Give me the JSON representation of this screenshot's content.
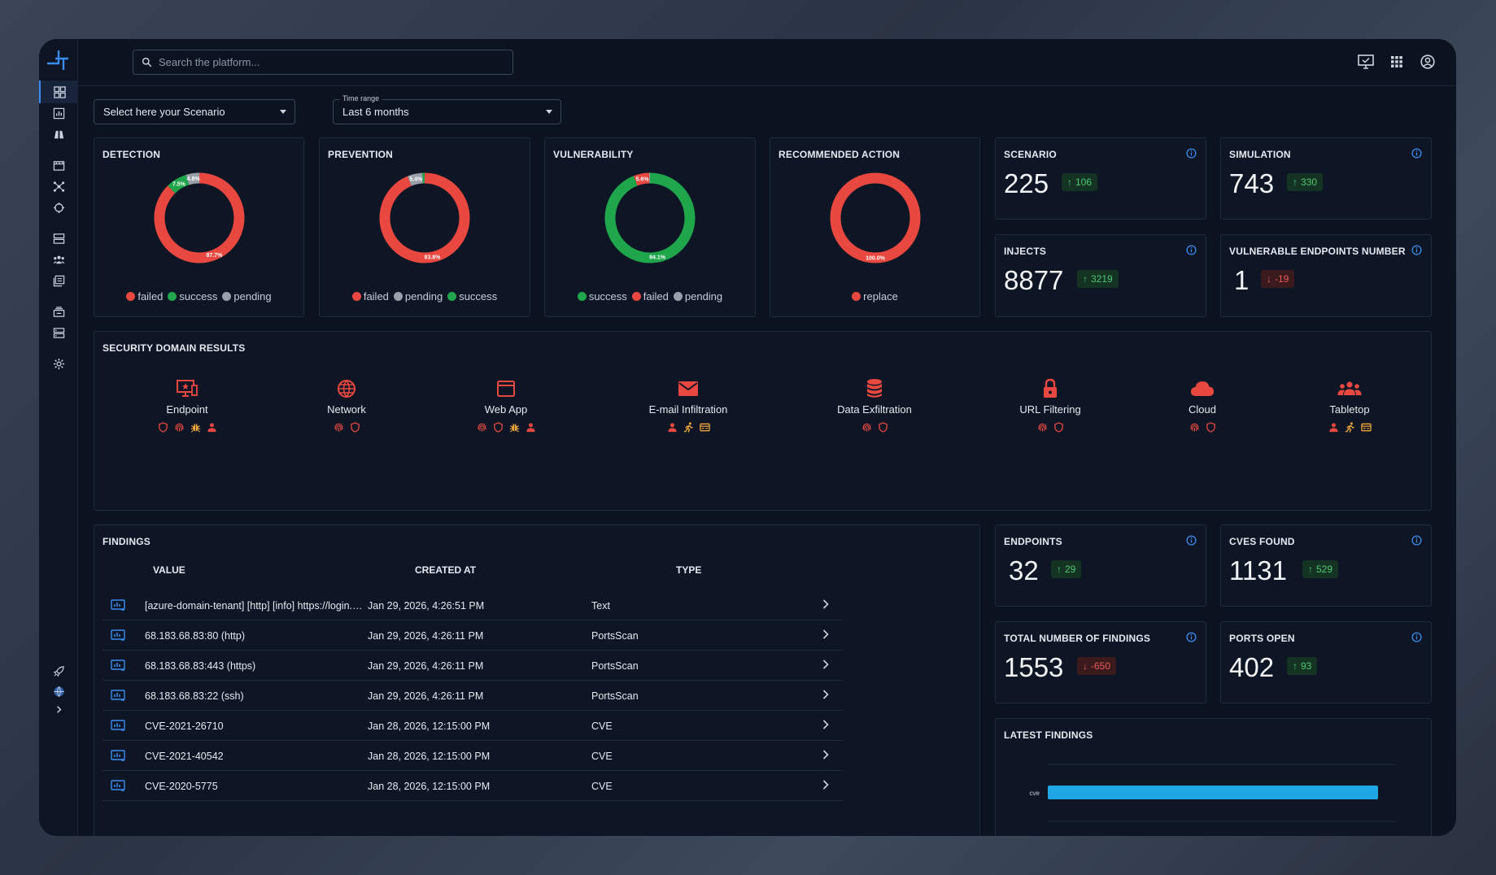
{
  "search": {
    "placeholder": "Search the platform..."
  },
  "filters": {
    "scenario_placeholder": "Select here your Scenario",
    "time_range_label": "Time range",
    "time_range_value": "Last 6 months"
  },
  "charts": {
    "detection": {
      "title": "DETECTION",
      "slices": [
        {
          "name": "failed",
          "percent": 87.7,
          "label": "87.7%",
          "color": "#e8483f"
        },
        {
          "name": "success",
          "percent": 7.5,
          "label": "7.5%",
          "color": "#1fa64a"
        },
        {
          "name": "pending",
          "percent": 4.8,
          "label": "4.8%",
          "color": "#9aa0a8"
        }
      ],
      "legend": [
        "failed",
        "success",
        "pending"
      ]
    },
    "prevention": {
      "title": "PREVENTION",
      "slices": [
        {
          "name": "failed",
          "percent": 93.8,
          "label": "93.8%",
          "color": "#e8483f"
        },
        {
          "name": "pending",
          "percent": 5.4,
          "label": "5.4%",
          "color": "#9aa0a8"
        },
        {
          "name": "success",
          "percent": 0.8,
          "label": "",
          "color": "#1fa64a"
        }
      ],
      "legend": [
        "failed",
        "pending",
        "success"
      ]
    },
    "vulnerability": {
      "title": "VULNERABILITY",
      "slices": [
        {
          "name": "success",
          "percent": 94.1,
          "label": "94.1%",
          "color": "#1fa64a"
        },
        {
          "name": "failed",
          "percent": 5.6,
          "label": "5.6%",
          "color": "#e8483f"
        },
        {
          "name": "pending",
          "percent": 0.3,
          "label": "",
          "color": "#9aa0a8"
        }
      ],
      "legend": [
        "success",
        "failed",
        "pending"
      ]
    },
    "recommended": {
      "title": "RECOMMENDED ACTION",
      "slices": [
        {
          "name": "replace",
          "percent": 100.0,
          "label": "100.0%",
          "color": "#e8483f"
        }
      ],
      "legend": [
        "replace"
      ]
    }
  },
  "metrics": {
    "scenario": {
      "title": "SCENARIO",
      "value": "225",
      "delta": "106",
      "trend": "up"
    },
    "simulation": {
      "title": "SIMULATION",
      "value": "743",
      "delta": "330",
      "trend": "up"
    },
    "injects": {
      "title": "INJECTS",
      "value": "8877",
      "delta": "3219",
      "trend": "up"
    },
    "vulnerable": {
      "title": "VULNERABLE ENDPOINTS NUMBER",
      "value": "1",
      "delta": "-19",
      "trend": "down"
    },
    "endpoints": {
      "title": "ENDPOINTS",
      "value": "32",
      "delta": "29",
      "trend": "up"
    },
    "cves": {
      "title": "CVES FOUND",
      "value": "1131",
      "delta": "529",
      "trend": "up"
    },
    "total_findings": {
      "title": "TOTAL NUMBER OF FINDINGS",
      "value": "1553",
      "delta": "-650",
      "trend": "down"
    },
    "ports": {
      "title": "PORTS OPEN",
      "value": "402",
      "delta": "93",
      "trend": "up"
    }
  },
  "security_domains": {
    "title": "SECURITY DOMAIN RESULTS",
    "items": [
      {
        "label": "Endpoint",
        "icon": "endpoint-icon",
        "results": [
          "shield",
          "fingerprint",
          "bug",
          "person"
        ]
      },
      {
        "label": "Network",
        "icon": "globe-icon",
        "results": [
          "fingerprint",
          "shield"
        ]
      },
      {
        "label": "Web App",
        "icon": "browser-window-icon",
        "results": [
          "fingerprint",
          "shield",
          "bug",
          "person"
        ]
      },
      {
        "label": "E-mail Infiltration",
        "icon": "envelope-icon",
        "results": [
          "person",
          "runner",
          "card"
        ]
      },
      {
        "label": "Data Exfiltration",
        "icon": "database-icon",
        "results": [
          "fingerprint",
          "shield"
        ]
      },
      {
        "label": "URL Filtering",
        "icon": "lock-icon",
        "results": [
          "fingerprint",
          "shield"
        ]
      },
      {
        "label": "Cloud",
        "icon": "cloud-icon",
        "results": [
          "fingerprint",
          "shield"
        ]
      },
      {
        "label": "Tabletop",
        "icon": "group-icon",
        "results": [
          "person",
          "runner",
          "card"
        ]
      }
    ]
  },
  "findings": {
    "title": "FINDINGS",
    "columns": [
      "VALUE",
      "CREATED AT",
      "TYPE"
    ],
    "rows": [
      {
        "value": "[azure-domain-tenant] [http] [info] https://login.m...",
        "created_at": "Jan 29, 2026, 4:26:51 PM",
        "type": "Text"
      },
      {
        "value": "68.183.68.83:80 (http)",
        "created_at": "Jan 29, 2026, 4:26:11 PM",
        "type": "PortsScan"
      },
      {
        "value": "68.183.68.83:443 (https)",
        "created_at": "Jan 29, 2026, 4:26:11 PM",
        "type": "PortsScan"
      },
      {
        "value": "68.183.68.83:22 (ssh)",
        "created_at": "Jan 29, 2026, 4:26:11 PM",
        "type": "PortsScan"
      },
      {
        "value": "CVE-2021-26710",
        "created_at": "Jan 28, 2026, 12:15:00 PM",
        "type": "CVE"
      },
      {
        "value": "CVE-2021-40542",
        "created_at": "Jan 28, 2026, 12:15:00 PM",
        "type": "CVE"
      },
      {
        "value": "CVE-2020-5775",
        "created_at": "Jan 28, 2026, 12:15:00 PM",
        "type": "CVE"
      }
    ]
  },
  "latest_findings": {
    "title": "LATEST FINDINGS",
    "chart_data": {
      "type": "bar",
      "orientation": "horizontal",
      "categories": [
        "cve"
      ],
      "series": [
        {
          "values": [
            1
          ]
        }
      ],
      "color": "#1ea7e4"
    }
  },
  "colors": {
    "failed": "#e8483f",
    "success": "#1fa64a",
    "pending": "#9aa0a8",
    "accent": "#3a8df0"
  }
}
